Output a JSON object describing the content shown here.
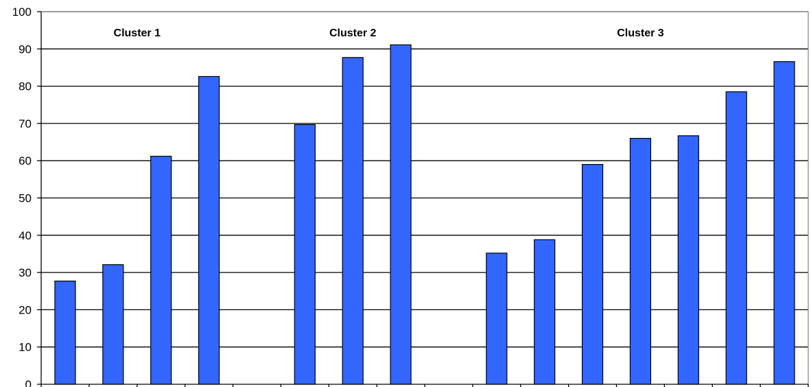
{
  "chart_data": {
    "type": "bar",
    "title": "",
    "xlabel": "",
    "ylabel": "",
    "ylim": [
      0,
      100
    ],
    "y_ticks": [
      0,
      10,
      20,
      30,
      40,
      50,
      60,
      70,
      80,
      90,
      100
    ],
    "grid": true,
    "bar_color": "#3366FF",
    "slot_count": 16,
    "clusters": [
      {
        "label": "Cluster 1",
        "slots": [
          0,
          1,
          2,
          3
        ]
      },
      {
        "label": "Cluster 2",
        "slots": [
          5,
          6,
          7
        ]
      },
      {
        "label": "Cluster 3",
        "slots": [
          9,
          10,
          11,
          12,
          13,
          14,
          15
        ]
      }
    ],
    "values": [
      27.7,
      32.1,
      61.2,
      82.6,
      null,
      69.7,
      87.7,
      91.1,
      null,
      35.2,
      38.8,
      59.0,
      66.0,
      66.7,
      78.5,
      86.6
    ]
  }
}
